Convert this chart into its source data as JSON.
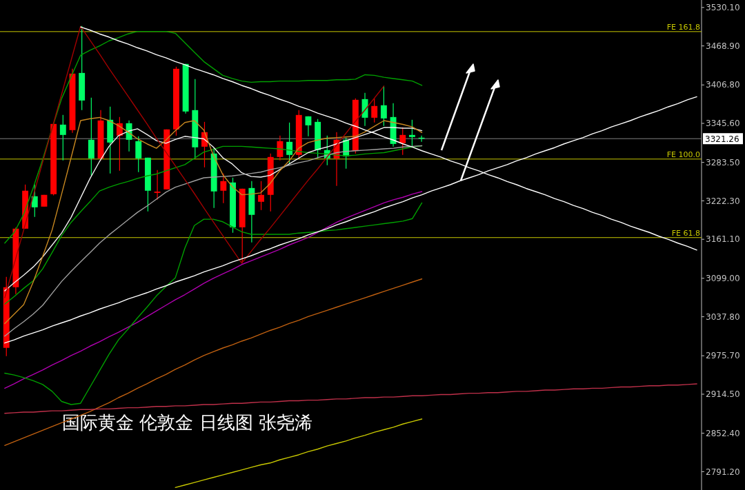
{
  "chart_data": [
    {
      "type": "candlestick",
      "annotations": [
        "国际黄金 伦敦金 日线图 张尧浠"
      ],
      "categories": [
        null,
        null,
        null,
        null,
        null,
        null,
        null,
        null,
        null,
        null,
        null,
        null,
        null,
        null,
        null,
        null,
        null,
        null,
        null,
        null,
        null,
        null,
        null,
        null,
        null,
        null,
        null,
        null,
        null,
        null,
        null,
        null,
        null,
        null,
        null,
        null,
        null,
        null,
        null,
        null,
        null,
        null,
        null,
        null,
        null,
        null,
        null,
        null,
        null,
        null,
        null,
        null,
        null,
        null,
        null,
        null,
        null,
        null,
        null,
        null,
        null,
        null,
        null,
        null,
        null,
        null,
        null,
        null,
        null,
        null,
        null,
        null,
        null,
        null
      ],
      "ohlc": [
        [
          2988.3,
          3101.2,
          2975.1,
          3084.8
        ],
        [
          3084.8,
          3180,
          3073.8,
          3178
        ],
        [
          3178,
          3248.2,
          3178,
          3238.4
        ],
        [
          3229.6,
          3248.2,
          3196.7,
          3212
        ],
        [
          3213.1,
          3231.8,
          3213.1,
          3231.8
        ],
        [
          3232.9,
          3346,
          3231,
          3344.7
        ],
        [
          3343.6,
          3359,
          3286.6,
          3327.2
        ],
        [
          3334.9,
          3432.5,
          3330.5,
          3424.8
        ],
        [
          3425.9,
          3500.5,
          3366.7,
          3382
        ],
        [
          3319.5,
          3386.4,
          3262.5,
          3289.9
        ],
        [
          3289.9,
          3366.7,
          3286.6,
          3350.2
        ],
        [
          3351.3,
          3372.2,
          3265.8,
          3315.1
        ],
        [
          3326.1,
          3355.7,
          3270.2,
          3345.8
        ],
        [
          3345.8,
          3350.2,
          3300.9,
          3319.5
        ],
        [
          3317.3,
          3325,
          3268,
          3289.9
        ],
        [
          3291,
          3291,
          3205.5,
          3238.4
        ],
        [
          3235,
          3271.3,
          3224.1,
          3237
        ],
        [
          3240.5,
          3336,
          3240.5,
          3336
        ],
        [
          3336,
          3435.8,
          3326.1,
          3432.5
        ],
        [
          3440.2,
          3440.2,
          3361.2,
          3364.5
        ],
        [
          3366.7,
          3416,
          3289.9,
          3307.5
        ],
        [
          3308.5,
          3348,
          3275.6,
          3331.6
        ],
        [
          3297.6,
          3306.4,
          3210.9,
          3237.3
        ],
        [
          3238.4,
          3265.8,
          3218.6,
          3253.7
        ],
        [
          3251.5,
          3259.2,
          3171.5,
          3180.2
        ],
        [
          3180.2,
          3241.6,
          3123.2,
          3241.6
        ],
        [
          3242.7,
          3253.7,
          3156.1,
          3200
        ],
        [
          3220.8,
          3253.7,
          3207.6,
          3231.8
        ],
        [
          3231.8,
          3297.6,
          3205.5,
          3292.1
        ],
        [
          3292.1,
          3326.1,
          3286.6,
          3317.3
        ],
        [
          3316.2,
          3346.9,
          3281.1,
          3295.4
        ],
        [
          3295.4,
          3366.7,
          3289.9,
          3359
        ],
        [
          3356.8,
          3356.8,
          3325,
          3342.5
        ],
        [
          3348,
          3352.4,
          3289.9,
          3303.1
        ],
        [
          3303.1,
          3326.1,
          3278.9,
          3289.9
        ],
        [
          3289.9,
          3331.6,
          3246,
          3319.5
        ],
        [
          3319.5,
          3322.8,
          3273.4,
          3293.2
        ],
        [
          3302,
          3385.3,
          3297.6,
          3383.1
        ],
        [
          3384.2,
          3394.1,
          3341.4,
          3354.6
        ],
        [
          3354.6,
          3385.3,
          3346.9,
          3373.3
        ],
        [
          3374.4,
          3405.1,
          3341.4,
          3353.5
        ],
        [
          3355.7,
          3377.6,
          3308.5,
          3312.9
        ],
        [
          3314,
          3339.3,
          3295.4,
          3327.2
        ],
        [
          3327.2,
          3351.3,
          3309.6,
          3323.9
        ],
        [
          3322.8,
          3326.1,
          3316.2,
          3321.26
        ],
        null,
        null,
        null,
        null,
        null,
        null,
        null,
        null,
        null,
        null,
        null,
        null,
        null,
        null,
        null,
        null,
        null,
        null,
        null,
        null,
        null,
        null,
        null,
        null,
        null,
        null,
        null,
        null,
        null
      ],
      "colors": [
        "#ff0000",
        "#ff0000",
        "#ff0000",
        "#00ff66",
        "#ff0000",
        "#ff0000",
        "#00ff66",
        "#ff0000",
        "#00ff66",
        "#00ff66",
        "#ff0000",
        "#00ff66",
        "#ff0000",
        "#00ff66",
        "#00ff66",
        "#00ff66",
        "#ff0000",
        "#ff0000",
        "#ff0000",
        "#00ff66",
        "#00ff66",
        "#ff0000",
        "#00ff66",
        "#ff0000",
        "#00ff66",
        "#ff0000",
        "#00ff66",
        "#ff0000",
        "#ff0000",
        "#ff0000",
        "#00ff66",
        "#ff0000",
        "#00ff66",
        "#00ff66",
        "#00ff66",
        "#ff0000",
        "#00ff66",
        "#ff0000",
        "#00ff66",
        "#ff0000",
        "#00ff66",
        "#00ff66",
        "#ff0000",
        "#00ff66",
        "#00ff66",
        null,
        null,
        null,
        null,
        null,
        null,
        null,
        null,
        null,
        null,
        null,
        null,
        null,
        null,
        null,
        null,
        null,
        null,
        null,
        null,
        null,
        null,
        null,
        null,
        null,
        null,
        null,
        null,
        null
      ],
      "ylim": [
        2762,
        3542
      ],
      "yticks": [
        {
          "value": 3530.1,
          "label": "3530.10"
        },
        {
          "value": 3468.9,
          "label": "3468.90"
        },
        {
          "value": 3406.8,
          "label": "3406.80"
        },
        {
          "value": 3345.6,
          "label": "3345.60"
        },
        {
          "value": 3283.5,
          "label": "3283.50"
        },
        {
          "value": 3222.3,
          "label": "3222.30"
        },
        {
          "value": 3161.1,
          "label": "3161.10"
        },
        {
          "value": 3099,
          "label": "3099.00"
        },
        {
          "value": 3037.8,
          "label": "3037.80"
        },
        {
          "value": 2975.7,
          "label": "2975.70"
        },
        {
          "value": 2914.5,
          "label": "2914.50"
        },
        {
          "value": 2852.4,
          "label": "2852.40"
        },
        {
          "value": 2791.2,
          "label": "2791.20"
        }
      ],
      "ref_lines": [
        {
          "axis": "y",
          "value": 3491.7,
          "label": "FE 161.8",
          "color": "#c8c800"
        },
        {
          "axis": "y",
          "value": 3288.8,
          "label": "FE 100.0",
          "color": "#c8c800"
        },
        {
          "axis": "y",
          "value": 3163.8,
          "label": "FE 61.8",
          "color": "#c8c800"
        },
        {
          "axis": "y",
          "value": 3321.26,
          "label": "3321.26",
          "color": "#808080"
        }
      ],
      "tick_labels": "y"
    },
    {
      "type": "line",
      "categories": [
        null,
        null,
        null,
        null,
        null,
        null,
        null,
        null,
        null,
        null,
        null,
        null,
        null,
        null,
        null,
        null,
        null,
        null,
        null,
        null,
        null,
        null,
        null,
        null,
        null,
        null,
        null,
        null,
        null,
        null,
        null,
        null,
        null,
        null,
        null,
        null,
        null,
        null,
        null,
        null,
        null,
        null,
        null,
        null,
        null,
        null,
        null,
        null,
        null,
        null,
        null,
        null,
        null,
        null,
        null,
        null,
        null,
        null,
        null,
        null,
        null,
        null,
        null,
        null,
        null,
        null,
        null,
        null,
        null,
        null,
        null,
        null,
        null,
        null
      ],
      "series": [
        {
          "color": "#b000b0",
          "values": [
            2924,
            2931,
            2939,
            2946,
            2953,
            2961,
            2968,
            2976,
            2983,
            2991,
            2998,
            3006,
            3013,
            3021,
            3029,
            3038,
            3047,
            3056,
            3065,
            3073,
            3082,
            3091,
            3099,
            3106,
            3113,
            3121,
            3127,
            3133,
            3139,
            3145,
            3152,
            3158,
            3164,
            3172,
            3180,
            3188,
            3195,
            3201,
            3207,
            3213,
            3219,
            3224,
            3228,
            3233,
            3237,
            null,
            null,
            null,
            null,
            null,
            null,
            null,
            null,
            null,
            null,
            null,
            null,
            null,
            null,
            null,
            null,
            null,
            null,
            null,
            null,
            null,
            null,
            null,
            null,
            null,
            null,
            null,
            null,
            null
          ]
        },
        {
          "color": "#c06010",
          "values": [
            2833,
            2839,
            2845,
            2851,
            2857,
            2863,
            2869,
            2875,
            2881,
            2887,
            2894,
            2901,
            2909,
            2916,
            2924,
            2931,
            2939,
            2946,
            2954,
            2961,
            2969,
            2976,
            2982,
            2988,
            2993,
            2999,
            3004,
            3010,
            3016,
            3021,
            3027,
            3032,
            3038,
            3043,
            3048,
            3053,
            3058,
            3063,
            3068,
            3073,
            3078,
            3083,
            3088,
            3093,
            3098,
            null,
            null,
            null,
            null,
            null,
            null,
            null,
            null,
            null,
            null,
            null,
            null,
            null,
            null,
            null,
            null,
            null,
            null,
            null,
            null,
            null,
            null,
            null,
            null,
            null,
            null,
            null,
            null,
            null
          ]
        },
        {
          "color": "#c0304a",
          "values": [
            2884,
            2885,
            2886,
            2886,
            2887,
            2888,
            2888,
            2889,
            2890,
            2890,
            2891,
            2891,
            2892,
            2893,
            2893,
            2894,
            2895,
            2895,
            2896,
            2896,
            2897,
            2898,
            2898,
            2899,
            2900,
            2900,
            2901,
            2902,
            2902,
            2903,
            2904,
            2904,
            2905,
            2905,
            2906,
            2907,
            2907,
            2908,
            2909,
            2909,
            2910,
            2910,
            2911,
            2912,
            2912,
            2913,
            2914,
            2914,
            2915,
            2916,
            2916,
            2917,
            2917,
            2918,
            2919,
            2919,
            2920,
            2921,
            2921,
            2922,
            2923,
            2923,
            2924,
            2924,
            2925,
            2926,
            2926,
            2927,
            2928,
            2928,
            2929,
            2929,
            2930,
            2931
          ]
        },
        {
          "color": "#c8c800",
          "values": [
            null,
            null,
            null,
            null,
            null,
            null,
            null,
            null,
            null,
            null,
            null,
            null,
            null,
            null,
            null,
            null,
            null,
            null,
            2766,
            2770,
            2774,
            2778,
            2782,
            2786,
            2790,
            2794,
            2798,
            2802,
            2805,
            2810,
            2814,
            2818,
            2823,
            2827,
            2832,
            2836,
            2840,
            2845,
            2849,
            2854,
            2858,
            2862,
            2867,
            2871,
            2875,
            null,
            null,
            null,
            null,
            null,
            null,
            null,
            null,
            null,
            null,
            null,
            null,
            null,
            null,
            null,
            null,
            null,
            null,
            null,
            null,
            null,
            null,
            null,
            null,
            null,
            null,
            null,
            null,
            null
          ]
        },
        {
          "color": "#00a000",
          "values": [
            3155,
            3172,
            3201,
            3243,
            3288,
            3338,
            3385,
            3420,
            3454,
            3462,
            3469,
            3477,
            3482,
            3488,
            3492,
            3492,
            3492,
            3492,
            3489,
            3474,
            3459,
            3444,
            3433,
            3422,
            3417,
            3413,
            3411,
            3412,
            3412,
            3413,
            3413,
            3413,
            3414,
            3414,
            3414,
            3415,
            3415,
            3416,
            3423,
            3422,
            3419,
            3417,
            3415,
            3413,
            3406,
            null,
            null,
            null,
            null,
            null,
            null,
            null,
            null,
            null,
            null,
            null,
            null,
            null,
            null,
            null,
            null,
            null,
            null,
            null,
            null,
            null,
            null,
            null,
            null,
            null,
            null,
            null,
            null,
            null
          ]
        },
        {
          "color": "#00a000",
          "values": [
            3058,
            3070,
            3083,
            3095,
            3114,
            3140,
            3167,
            3188,
            3205,
            3221,
            3238,
            3244,
            3249,
            3253,
            3258,
            3262,
            3265,
            3270,
            3275,
            3280,
            3290,
            3300,
            3304,
            3309,
            3309,
            3309,
            3308,
            3307,
            3306,
            3305,
            3303,
            3301,
            3299,
            3298,
            3297,
            3295,
            3294,
            3295,
            3297,
            3298,
            3299,
            3302,
            3305,
            3308,
            3310,
            null,
            null,
            null,
            null,
            null,
            null,
            null,
            null,
            null,
            null,
            null,
            null,
            null,
            null,
            null,
            null,
            null,
            null,
            null,
            null,
            null,
            null,
            null,
            null,
            null,
            null,
            null,
            null,
            null
          ]
        },
        {
          "color": "#00a000",
          "values": [
            2948,
            2945,
            2941,
            2936,
            2930,
            2919,
            2903,
            2898,
            2900,
            2926,
            2952,
            2978,
            3001,
            3018,
            3036,
            3053,
            3071,
            3086,
            3100,
            3147,
            3183,
            3193,
            3193,
            3189,
            3181,
            3173,
            3169,
            3169,
            3169,
            3169,
            3169,
            3171,
            3172,
            3173,
            3175,
            3176,
            3178,
            3180,
            3182,
            3184,
            3186,
            3188,
            3190,
            3194,
            3219,
            null,
            null,
            null,
            null,
            null,
            null,
            null,
            null,
            null,
            null,
            null,
            null,
            null,
            null,
            null,
            null,
            null,
            null,
            null,
            null,
            null,
            null,
            null,
            null,
            null,
            null,
            null,
            null,
            null
          ]
        },
        {
          "color": "#f0f0f0",
          "values": [
            3079,
            3092,
            3104,
            3117,
            3133,
            3152,
            3171,
            3196,
            3227,
            3258,
            3285,
            3309,
            3326,
            3333,
            3337,
            3328,
            3318,
            3314,
            3320,
            3325,
            3323,
            3321,
            3308,
            3291,
            3281,
            3267,
            3261,
            3260,
            3263,
            3272,
            3281,
            3290,
            3299,
            3304,
            3308,
            3313,
            3318,
            3323,
            3328,
            3333,
            3339,
            3339,
            3338,
            3338,
            3334,
            null,
            null,
            null,
            null,
            null,
            null,
            null,
            null,
            null,
            null,
            null,
            null,
            null,
            null,
            null,
            null,
            null,
            null,
            null,
            null,
            null,
            null,
            null,
            null,
            null,
            null,
            null,
            null,
            null
          ]
        },
        {
          "color": "#a0a0a0",
          "values": [
            3007,
            3019,
            3030,
            3042,
            3056,
            3075,
            3094,
            3110,
            3125,
            3140,
            3155,
            3168,
            3180,
            3192,
            3204,
            3214,
            3225,
            3236,
            3244,
            3249,
            3254,
            3259,
            3260,
            3261,
            3262,
            3264,
            3266,
            3268,
            3272,
            3275,
            3279,
            3283,
            3286,
            3291,
            3295,
            3299,
            3301,
            3302,
            3303,
            3304,
            3305,
            3306,
            3308,
            3309,
            3310,
            null,
            null,
            null,
            null,
            null,
            null,
            null,
            null,
            null,
            null,
            null,
            null,
            null,
            null,
            null,
            null,
            null,
            null,
            null,
            null,
            null,
            null,
            null,
            null,
            null,
            null,
            null,
            null,
            null
          ]
        },
        {
          "color": "#c88820",
          "values": [
            3027,
            3042,
            3057,
            3093,
            3134,
            3176,
            3233,
            3291,
            3350,
            3353,
            3355,
            3350,
            3342,
            3332,
            3321,
            3313,
            3306,
            3319,
            3334,
            3347,
            3350,
            3335,
            3295,
            3264,
            3245,
            3232,
            3233,
            3235,
            3250,
            3270,
            3286,
            3306,
            3315,
            3319,
            3322,
            3323,
            3324,
            3325,
            3332,
            3341,
            3350,
            3347,
            3344,
            3340,
            3331,
            null,
            null,
            null,
            null,
            null,
            null,
            null,
            null,
            null,
            null,
            null,
            null,
            null,
            null,
            null,
            null,
            null,
            null,
            null,
            null,
            null,
            null,
            null,
            null,
            null,
            null,
            null,
            null,
            null
          ]
        },
        {
          "color": "#a00000",
          "values": [
            3068,
            3122,
            3176,
            3230,
            3284,
            3338,
            3392,
            3446,
            3500,
            3478,
            3456,
            3433,
            3411,
            3389,
            3367,
            3345,
            3322,
            3300,
            3278,
            3256,
            3234,
            3211,
            3189,
            3167,
            3145,
            3123,
            3142,
            3161,
            3179,
            3198,
            3217,
            3236,
            3255,
            3273,
            3292,
            3311,
            3330,
            3349,
            3367,
            3386,
            3405,
            null,
            null,
            null,
            null,
            null,
            null,
            null,
            null,
            null,
            null,
            null,
            null,
            null,
            null,
            null,
            null,
            null,
            null,
            null,
            null,
            null,
            null,
            null,
            null,
            null,
            null,
            null,
            null,
            null,
            null,
            null,
            null,
            null
          ]
        },
        {
          "color": "#ffffff",
          "values": [
            null,
            null,
            null,
            null,
            null,
            null,
            null,
            null,
            3499,
            3494,
            3488,
            3483,
            3477,
            3472,
            3466,
            3461,
            3455,
            3450,
            3444,
            3439,
            3433,
            3428,
            3423,
            3417,
            3412,
            3406,
            3401,
            3395,
            3390,
            3384,
            3379,
            3373,
            3368,
            3362,
            3357,
            3352,
            3346,
            3341,
            3335,
            3330,
            3324,
            3319,
            3313,
            3308,
            3302,
            3297,
            3292,
            3286,
            3281,
            3275,
            3270,
            3264,
            3259,
            3253,
            3248,
            3242,
            3237,
            3232,
            3226,
            3221,
            3215,
            3210,
            3204,
            3199,
            3193,
            3188,
            3182,
            3177,
            3172,
            3166,
            3161,
            3155,
            3150,
            3144
          ]
        },
        {
          "color": "#ffffff",
          "values": [
            2996,
            3001,
            3007,
            3012,
            3017,
            3023,
            3028,
            3033,
            3039,
            3044,
            3050,
            3055,
            3060,
            3066,
            3071,
            3076,
            3082,
            3087,
            3093,
            3098,
            3103,
            3109,
            3114,
            3119,
            3125,
            3130,
            3135,
            3141,
            3146,
            3152,
            3157,
            3162,
            3168,
            3173,
            3178,
            3184,
            3189,
            3195,
            3200,
            3205,
            3211,
            3216,
            3221,
            3227,
            3232,
            3238,
            3243,
            3248,
            3254,
            3259,
            3264,
            3270,
            3275,
            3280,
            3286,
            3291,
            3297,
            3302,
            3307,
            3313,
            3318,
            3323,
            3329,
            3334,
            3340,
            3345,
            3350,
            3356,
            3361,
            3366,
            3372,
            3377,
            3383,
            3388
          ]
        }
      ],
      "ylim": [
        2762,
        3542
      ],
      "tick_labels": false
    }
  ]
}
